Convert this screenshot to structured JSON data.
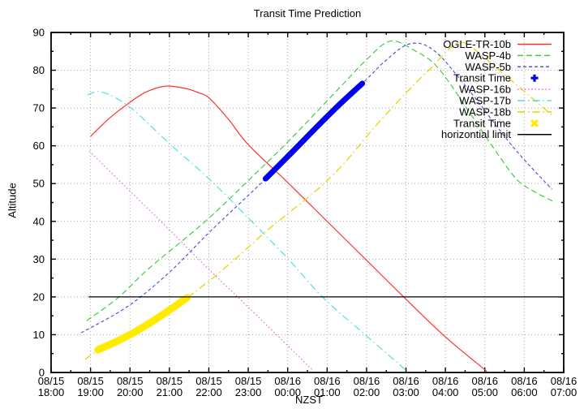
{
  "title": "Transit Time Prediction",
  "x_axis": {
    "label": "NZST",
    "tick_labels": [
      [
        "08/15",
        "18:00"
      ],
      [
        "08/15",
        "19:00"
      ],
      [
        "08/15",
        "20:00"
      ],
      [
        "08/15",
        "21:00"
      ],
      [
        "08/15",
        "22:00"
      ],
      [
        "08/15",
        "23:00"
      ],
      [
        "08/16",
        "00:00"
      ],
      [
        "08/16",
        "01:00"
      ],
      [
        "08/16",
        "02:00"
      ],
      [
        "08/16",
        "03:00"
      ],
      [
        "08/16",
        "04:00"
      ],
      [
        "08/16",
        "05:00"
      ],
      [
        "08/16",
        "06:00"
      ],
      [
        "08/16",
        "07:00"
      ]
    ],
    "minor_tick_every_hours": 0.5
  },
  "y_axis": {
    "label": "Altitude",
    "tick_labels": [
      "0",
      "10",
      "20",
      "30",
      "40",
      "50",
      "60",
      "70",
      "80",
      "90"
    ],
    "minor_tick_every": 5
  },
  "grid": {
    "show": true,
    "color": "#a8a8a8"
  },
  "chart_data": {
    "type": "line",
    "title": "Transit Time Prediction",
    "xlabel": "NZST",
    "ylabel": "Altitude",
    "x_unit": "hours after 08/15 18:00 NZST",
    "x_range_hours": [
      0,
      13
    ],
    "ylim": [
      0,
      90
    ],
    "legend_position": "top-right-inside",
    "series": [
      {
        "name": "OGLE-TR-10b",
        "color": "#ff3333",
        "style": "solid",
        "width": 1.2,
        "points": [
          [
            1.0,
            62.5
          ],
          [
            1.5,
            67.5
          ],
          [
            2.0,
            71.5
          ],
          [
            2.4,
            74.2
          ],
          [
            2.9,
            75.8
          ],
          [
            3.4,
            75.2
          ],
          [
            3.7,
            74.2
          ],
          [
            4.0,
            72.7
          ],
          [
            4.5,
            67.0
          ],
          [
            5.0,
            60.3
          ],
          [
            6.0,
            50.3
          ],
          [
            7.0,
            40.0
          ],
          [
            8.0,
            29.7
          ],
          [
            9.0,
            19.4
          ],
          [
            10.0,
            9.4
          ],
          [
            11.05,
            0.3
          ]
        ]
      },
      {
        "name": "WASP-4b",
        "color": "#44cc44",
        "style": "dashed",
        "width": 1.2,
        "points": [
          [
            0.9,
            13.7
          ],
          [
            1.7,
            19.8
          ],
          [
            2.5,
            27.7
          ],
          [
            3.9,
            39.9
          ],
          [
            5.0,
            50.8
          ],
          [
            6.0,
            61.0
          ],
          [
            7.3,
            75.2
          ],
          [
            8.0,
            82.8
          ],
          [
            8.6,
            87.7
          ],
          [
            9.2,
            85.3
          ],
          [
            9.8,
            80.8
          ],
          [
            10.6,
            69.0
          ],
          [
            11.4,
            56.7
          ],
          [
            11.85,
            50.7
          ],
          [
            12.3,
            47.6
          ],
          [
            12.73,
            45.3
          ]
        ]
      },
      {
        "name": "WASP-5b",
        "color": "#5555dd",
        "style": "dashed-short",
        "width": 1.2,
        "points": [
          [
            0.76,
            10.5
          ],
          [
            1.93,
            17.4
          ],
          [
            3.0,
            26.5
          ],
          [
            4.04,
            37.4
          ],
          [
            5.44,
            51.3
          ],
          [
            6.6,
            64.0
          ],
          [
            7.89,
            76.5
          ],
          [
            8.5,
            82.7
          ],
          [
            9.1,
            87.0
          ],
          [
            9.7,
            85.3
          ],
          [
            10.5,
            76.0
          ],
          [
            11.7,
            59.9
          ],
          [
            12.7,
            48.5
          ]
        ]
      },
      {
        "name": "Transit Time",
        "color": "#0000ee",
        "style": "band",
        "width": 7,
        "marker": "plus",
        "points": [
          [
            5.44,
            51.3
          ],
          [
            6.1,
            58.2
          ],
          [
            6.7,
            64.6
          ],
          [
            7.3,
            70.8
          ],
          [
            7.89,
            76.5
          ]
        ]
      },
      {
        "name": "WASP-16b",
        "color": "#ee66ee",
        "style": "dotted",
        "width": 1.2,
        "points": [
          [
            0.97,
            58.6
          ],
          [
            2.0,
            48.0
          ],
          [
            3.0,
            37.8
          ],
          [
            4.0,
            27.3
          ],
          [
            5.0,
            17.3
          ],
          [
            6.0,
            7.1
          ],
          [
            6.65,
            0.4
          ]
        ]
      },
      {
        "name": "WASP-17b",
        "color": "#55dddd",
        "style": "dash-dot",
        "width": 1.2,
        "points": [
          [
            0.92,
            73.5
          ],
          [
            1.3,
            74.2
          ],
          [
            2.0,
            70.2
          ],
          [
            3.0,
            60.6
          ],
          [
            4.0,
            51.3
          ],
          [
            5.0,
            40.9
          ],
          [
            6.0,
            30.2
          ],
          [
            6.92,
            19.6
          ],
          [
            8.0,
            9.7
          ],
          [
            9.03,
            0.3
          ]
        ]
      },
      {
        "name": "WASP-18b",
        "color": "#e8d500",
        "style": "dash-dot",
        "width": 1.3,
        "points": [
          [
            0.86,
            3.4
          ],
          [
            1.19,
            5.8
          ],
          [
            2.2,
            11.2
          ],
          [
            3.45,
            19.8
          ],
          [
            4.5,
            28.5
          ],
          [
            5.5,
            37.8
          ],
          [
            6.65,
            47.5
          ],
          [
            7.4,
            55.0
          ],
          [
            8.2,
            64.9
          ],
          [
            9.0,
            74.0
          ],
          [
            9.6,
            80.2
          ],
          [
            10.35,
            87.3
          ],
          [
            11.0,
            83.2
          ],
          [
            11.4,
            79.7
          ],
          [
            12.1,
            73.5
          ],
          [
            12.73,
            67.9
          ]
        ]
      },
      {
        "name": "Transit Time",
        "color": "#ffeb00",
        "style": "band",
        "width": 9,
        "marker": "cross",
        "points": [
          [
            1.19,
            6.0
          ],
          [
            1.7,
            8.4
          ],
          [
            2.2,
            11.2
          ],
          [
            2.8,
            15.1
          ],
          [
            3.45,
            19.8
          ]
        ]
      },
      {
        "name": "horizontial limit",
        "color": "#000000",
        "style": "solid",
        "width": 1.2,
        "points": [
          [
            0.95,
            20.0
          ],
          [
            12.88,
            20.0
          ]
        ]
      }
    ]
  }
}
